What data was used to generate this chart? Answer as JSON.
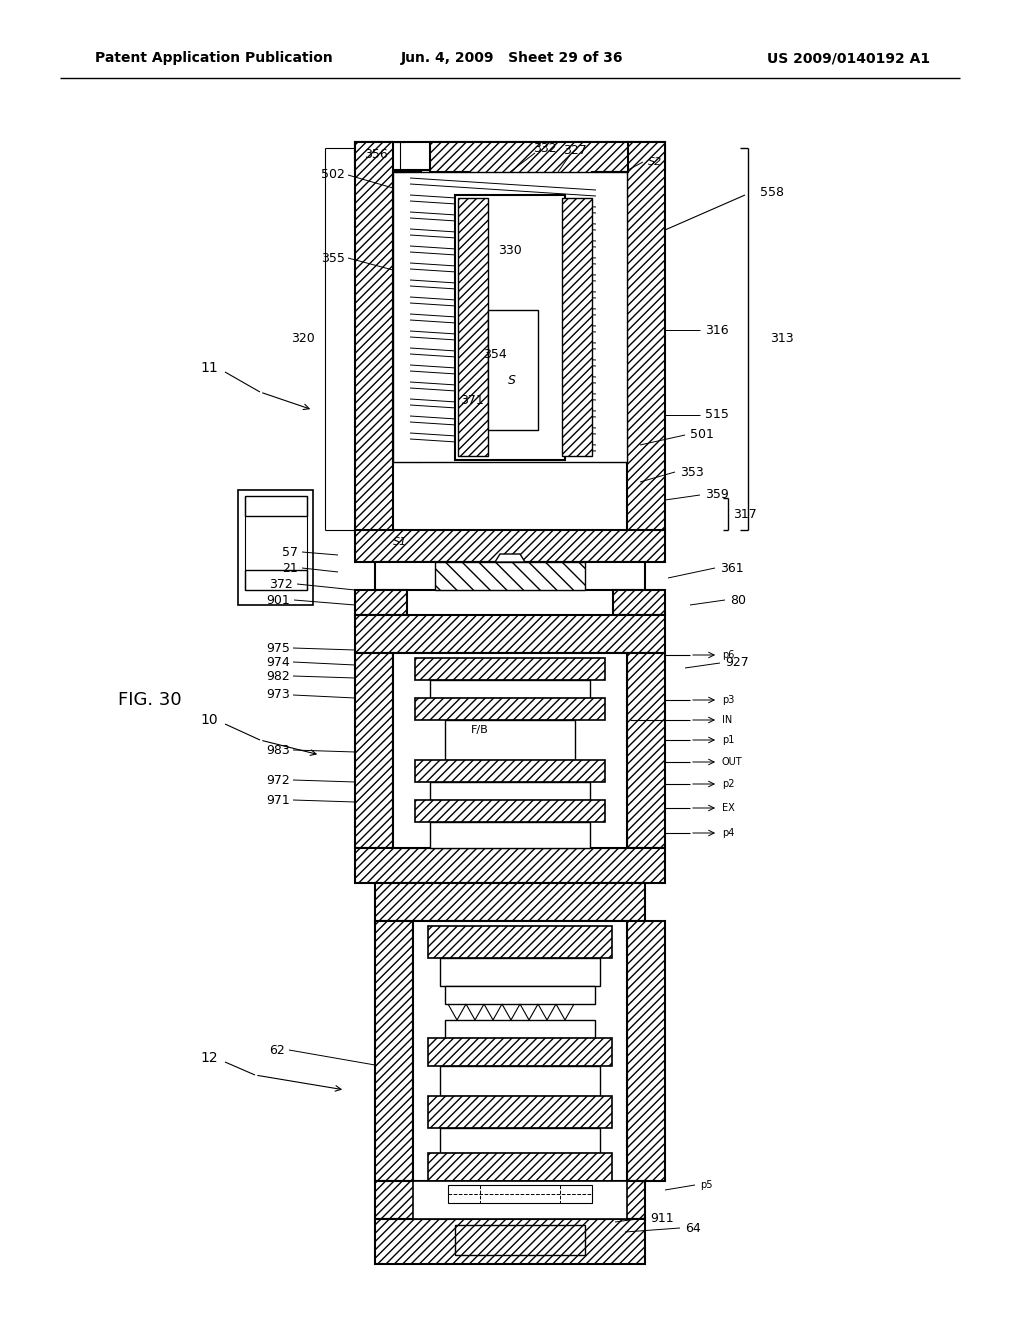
{
  "header_left": "Patent Application Publication",
  "header_center": "Jun. 4, 2009   Sheet 29 of 36",
  "header_right": "US 2009/0140192 A1",
  "fig_label": "FIG. 30",
  "background_color": "#ffffff",
  "line_color": "#000000",
  "label_fontsize": 9,
  "header_fontsize": 10,
  "fig_label_fontsize": 13
}
